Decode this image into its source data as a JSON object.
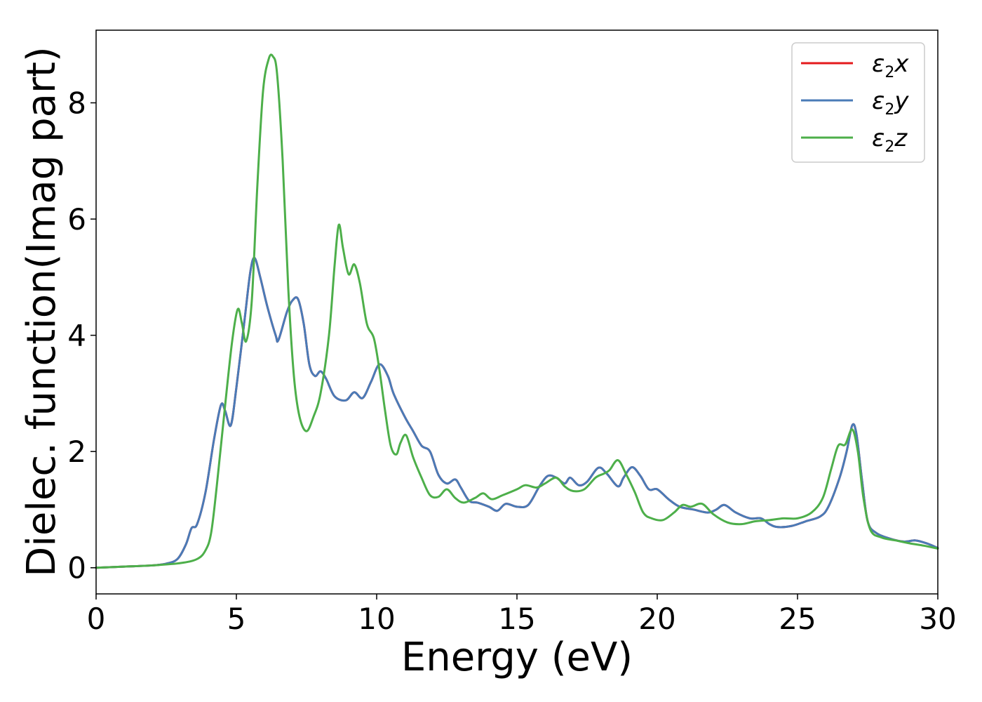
{
  "chart_data": {
    "type": "line",
    "xlabel": "Energy (eV)",
    "ylabel": "Dielec. function(Imag part)",
    "xlim": [
      0,
      30
    ],
    "ylim": [
      -0.45,
      9.25
    ],
    "xticks": [
      0,
      5,
      10,
      15,
      20,
      25,
      30
    ],
    "yticks": [
      0,
      2,
      4,
      6,
      8
    ],
    "grid": false,
    "legend_position": "top-right",
    "series": [
      {
        "name": "ε₂x",
        "legend_symbol": "ε",
        "legend_subscript": "2",
        "legend_suffix": "x",
        "color": "#e41a1c",
        "points": [
          [
            0,
            0.0
          ],
          [
            1,
            0.02
          ],
          [
            2,
            0.04
          ],
          [
            2.5,
            0.07
          ],
          [
            2.9,
            0.15
          ],
          [
            3.2,
            0.4
          ],
          [
            3.4,
            0.68
          ],
          [
            3.6,
            0.75
          ],
          [
            3.9,
            1.3
          ],
          [
            4.2,
            2.2
          ],
          [
            4.45,
            2.8
          ],
          [
            4.6,
            2.7
          ],
          [
            4.8,
            2.45
          ],
          [
            5.0,
            3.1
          ],
          [
            5.3,
            4.3
          ],
          [
            5.5,
            5.1
          ],
          [
            5.65,
            5.33
          ],
          [
            5.85,
            5.0
          ],
          [
            6.1,
            4.5
          ],
          [
            6.4,
            4.0
          ],
          [
            6.5,
            3.92
          ],
          [
            6.8,
            4.4
          ],
          [
            7.0,
            4.6
          ],
          [
            7.2,
            4.62
          ],
          [
            7.4,
            4.2
          ],
          [
            7.6,
            3.5
          ],
          [
            7.8,
            3.3
          ],
          [
            8.0,
            3.38
          ],
          [
            8.2,
            3.25
          ],
          [
            8.5,
            2.95
          ],
          [
            8.9,
            2.88
          ],
          [
            9.2,
            3.02
          ],
          [
            9.5,
            2.92
          ],
          [
            9.8,
            3.2
          ],
          [
            10.1,
            3.5
          ],
          [
            10.4,
            3.3
          ],
          [
            10.6,
            3.0
          ],
          [
            11.0,
            2.6
          ],
          [
            11.3,
            2.35
          ],
          [
            11.6,
            2.1
          ],
          [
            11.9,
            2.0
          ],
          [
            12.2,
            1.6
          ],
          [
            12.5,
            1.45
          ],
          [
            12.8,
            1.52
          ],
          [
            13.0,
            1.38
          ],
          [
            13.3,
            1.15
          ],
          [
            13.6,
            1.12
          ],
          [
            14.0,
            1.05
          ],
          [
            14.3,
            0.98
          ],
          [
            14.6,
            1.1
          ],
          [
            15.0,
            1.05
          ],
          [
            15.4,
            1.08
          ],
          [
            15.8,
            1.4
          ],
          [
            16.1,
            1.58
          ],
          [
            16.4,
            1.55
          ],
          [
            16.7,
            1.45
          ],
          [
            16.9,
            1.55
          ],
          [
            17.2,
            1.42
          ],
          [
            17.5,
            1.48
          ],
          [
            17.9,
            1.72
          ],
          [
            18.2,
            1.62
          ],
          [
            18.6,
            1.4
          ],
          [
            18.8,
            1.55
          ],
          [
            19.1,
            1.73
          ],
          [
            19.4,
            1.58
          ],
          [
            19.7,
            1.35
          ],
          [
            20.0,
            1.35
          ],
          [
            20.4,
            1.18
          ],
          [
            20.8,
            1.05
          ],
          [
            21.3,
            1.0
          ],
          [
            21.8,
            0.95
          ],
          [
            22.1,
            1.0
          ],
          [
            22.4,
            1.08
          ],
          [
            22.8,
            0.95
          ],
          [
            23.3,
            0.85
          ],
          [
            23.7,
            0.85
          ],
          [
            24.0,
            0.75
          ],
          [
            24.3,
            0.7
          ],
          [
            24.8,
            0.72
          ],
          [
            25.3,
            0.8
          ],
          [
            25.8,
            0.88
          ],
          [
            26.1,
            1.05
          ],
          [
            26.5,
            1.55
          ],
          [
            26.75,
            2.0
          ],
          [
            26.95,
            2.45
          ],
          [
            27.1,
            2.3
          ],
          [
            27.3,
            1.5
          ],
          [
            27.5,
            0.8
          ],
          [
            27.8,
            0.6
          ],
          [
            28.3,
            0.5
          ],
          [
            28.8,
            0.45
          ],
          [
            29.2,
            0.47
          ],
          [
            29.6,
            0.42
          ],
          [
            30.0,
            0.34
          ]
        ]
      },
      {
        "name": "ε₂y",
        "legend_symbol": "ε",
        "legend_subscript": "2",
        "legend_suffix": "y",
        "color": "#4a7bb7",
        "points": [
          [
            0,
            0.0
          ],
          [
            1,
            0.02
          ],
          [
            2,
            0.04
          ],
          [
            2.5,
            0.07
          ],
          [
            2.9,
            0.15
          ],
          [
            3.2,
            0.4
          ],
          [
            3.4,
            0.68
          ],
          [
            3.6,
            0.75
          ],
          [
            3.9,
            1.3
          ],
          [
            4.2,
            2.2
          ],
          [
            4.45,
            2.8
          ],
          [
            4.6,
            2.7
          ],
          [
            4.8,
            2.45
          ],
          [
            5.0,
            3.1
          ],
          [
            5.3,
            4.3
          ],
          [
            5.5,
            5.1
          ],
          [
            5.65,
            5.33
          ],
          [
            5.85,
            5.0
          ],
          [
            6.1,
            4.5
          ],
          [
            6.4,
            4.0
          ],
          [
            6.5,
            3.92
          ],
          [
            6.8,
            4.4
          ],
          [
            7.0,
            4.6
          ],
          [
            7.2,
            4.62
          ],
          [
            7.4,
            4.2
          ],
          [
            7.6,
            3.5
          ],
          [
            7.8,
            3.3
          ],
          [
            8.0,
            3.38
          ],
          [
            8.2,
            3.25
          ],
          [
            8.5,
            2.95
          ],
          [
            8.9,
            2.88
          ],
          [
            9.2,
            3.02
          ],
          [
            9.5,
            2.92
          ],
          [
            9.8,
            3.2
          ],
          [
            10.1,
            3.5
          ],
          [
            10.4,
            3.3
          ],
          [
            10.6,
            3.0
          ],
          [
            11.0,
            2.6
          ],
          [
            11.3,
            2.35
          ],
          [
            11.6,
            2.1
          ],
          [
            11.9,
            2.0
          ],
          [
            12.2,
            1.6
          ],
          [
            12.5,
            1.45
          ],
          [
            12.8,
            1.52
          ],
          [
            13.0,
            1.38
          ],
          [
            13.3,
            1.15
          ],
          [
            13.6,
            1.12
          ],
          [
            14.0,
            1.05
          ],
          [
            14.3,
            0.98
          ],
          [
            14.6,
            1.1
          ],
          [
            15.0,
            1.05
          ],
          [
            15.4,
            1.08
          ],
          [
            15.8,
            1.4
          ],
          [
            16.1,
            1.58
          ],
          [
            16.4,
            1.55
          ],
          [
            16.7,
            1.45
          ],
          [
            16.9,
            1.55
          ],
          [
            17.2,
            1.42
          ],
          [
            17.5,
            1.48
          ],
          [
            17.9,
            1.72
          ],
          [
            18.2,
            1.62
          ],
          [
            18.6,
            1.4
          ],
          [
            18.8,
            1.55
          ],
          [
            19.1,
            1.73
          ],
          [
            19.4,
            1.58
          ],
          [
            19.7,
            1.35
          ],
          [
            20.0,
            1.35
          ],
          [
            20.4,
            1.18
          ],
          [
            20.8,
            1.05
          ],
          [
            21.3,
            1.0
          ],
          [
            21.8,
            0.95
          ],
          [
            22.1,
            1.0
          ],
          [
            22.4,
            1.08
          ],
          [
            22.8,
            0.95
          ],
          [
            23.3,
            0.85
          ],
          [
            23.7,
            0.85
          ],
          [
            24.0,
            0.75
          ],
          [
            24.3,
            0.7
          ],
          [
            24.8,
            0.72
          ],
          [
            25.3,
            0.8
          ],
          [
            25.8,
            0.88
          ],
          [
            26.1,
            1.05
          ],
          [
            26.5,
            1.55
          ],
          [
            26.75,
            2.0
          ],
          [
            26.95,
            2.45
          ],
          [
            27.1,
            2.3
          ],
          [
            27.3,
            1.5
          ],
          [
            27.5,
            0.8
          ],
          [
            27.8,
            0.6
          ],
          [
            28.3,
            0.5
          ],
          [
            28.8,
            0.45
          ],
          [
            29.2,
            0.47
          ],
          [
            29.6,
            0.42
          ],
          [
            30.0,
            0.34
          ]
        ]
      },
      {
        "name": "ε₂z",
        "legend_symbol": "ε",
        "legend_subscript": "2",
        "legend_suffix": "z",
        "color": "#4daf4a",
        "points": [
          [
            0,
            0.0
          ],
          [
            1,
            0.02
          ],
          [
            2,
            0.04
          ],
          [
            3.0,
            0.08
          ],
          [
            3.6,
            0.15
          ],
          [
            3.9,
            0.3
          ],
          [
            4.1,
            0.6
          ],
          [
            4.3,
            1.4
          ],
          [
            4.6,
            2.8
          ],
          [
            4.85,
            3.9
          ],
          [
            5.05,
            4.45
          ],
          [
            5.2,
            4.2
          ],
          [
            5.35,
            3.9
          ],
          [
            5.55,
            4.6
          ],
          [
            5.75,
            6.6
          ],
          [
            5.95,
            8.2
          ],
          [
            6.15,
            8.75
          ],
          [
            6.3,
            8.8
          ],
          [
            6.45,
            8.5
          ],
          [
            6.65,
            7.0
          ],
          [
            6.85,
            4.8
          ],
          [
            7.05,
            3.3
          ],
          [
            7.25,
            2.6
          ],
          [
            7.5,
            2.35
          ],
          [
            7.75,
            2.6
          ],
          [
            8.0,
            3.0
          ],
          [
            8.3,
            4.0
          ],
          [
            8.5,
            5.2
          ],
          [
            8.65,
            5.9
          ],
          [
            8.8,
            5.5
          ],
          [
            9.0,
            5.05
          ],
          [
            9.2,
            5.22
          ],
          [
            9.4,
            4.9
          ],
          [
            9.65,
            4.2
          ],
          [
            9.9,
            3.95
          ],
          [
            10.1,
            3.4
          ],
          [
            10.3,
            2.7
          ],
          [
            10.5,
            2.1
          ],
          [
            10.7,
            1.95
          ],
          [
            10.85,
            2.15
          ],
          [
            11.05,
            2.28
          ],
          [
            11.3,
            1.9
          ],
          [
            11.6,
            1.55
          ],
          [
            11.9,
            1.25
          ],
          [
            12.2,
            1.22
          ],
          [
            12.5,
            1.35
          ],
          [
            12.8,
            1.2
          ],
          [
            13.1,
            1.12
          ],
          [
            13.5,
            1.2
          ],
          [
            13.8,
            1.28
          ],
          [
            14.1,
            1.18
          ],
          [
            14.5,
            1.25
          ],
          [
            15.0,
            1.35
          ],
          [
            15.3,
            1.42
          ],
          [
            15.7,
            1.38
          ],
          [
            16.0,
            1.45
          ],
          [
            16.4,
            1.55
          ],
          [
            16.7,
            1.4
          ],
          [
            17.0,
            1.32
          ],
          [
            17.4,
            1.35
          ],
          [
            17.8,
            1.55
          ],
          [
            18.1,
            1.62
          ],
          [
            18.3,
            1.68
          ],
          [
            18.6,
            1.85
          ],
          [
            18.9,
            1.6
          ],
          [
            19.2,
            1.3
          ],
          [
            19.5,
            0.95
          ],
          [
            19.8,
            0.85
          ],
          [
            20.2,
            0.82
          ],
          [
            20.6,
            0.95
          ],
          [
            20.9,
            1.08
          ],
          [
            21.2,
            1.05
          ],
          [
            21.6,
            1.1
          ],
          [
            22.0,
            0.92
          ],
          [
            22.5,
            0.78
          ],
          [
            23.0,
            0.75
          ],
          [
            23.5,
            0.8
          ],
          [
            24.0,
            0.82
          ],
          [
            24.5,
            0.85
          ],
          [
            25.0,
            0.85
          ],
          [
            25.5,
            0.95
          ],
          [
            25.9,
            1.2
          ],
          [
            26.2,
            1.7
          ],
          [
            26.45,
            2.1
          ],
          [
            26.7,
            2.12
          ],
          [
            26.95,
            2.38
          ],
          [
            27.15,
            2.0
          ],
          [
            27.35,
            1.2
          ],
          [
            27.6,
            0.65
          ],
          [
            28.0,
            0.52
          ],
          [
            28.5,
            0.47
          ],
          [
            29.0,
            0.42
          ],
          [
            29.5,
            0.38
          ],
          [
            30.0,
            0.33
          ]
        ]
      }
    ]
  }
}
